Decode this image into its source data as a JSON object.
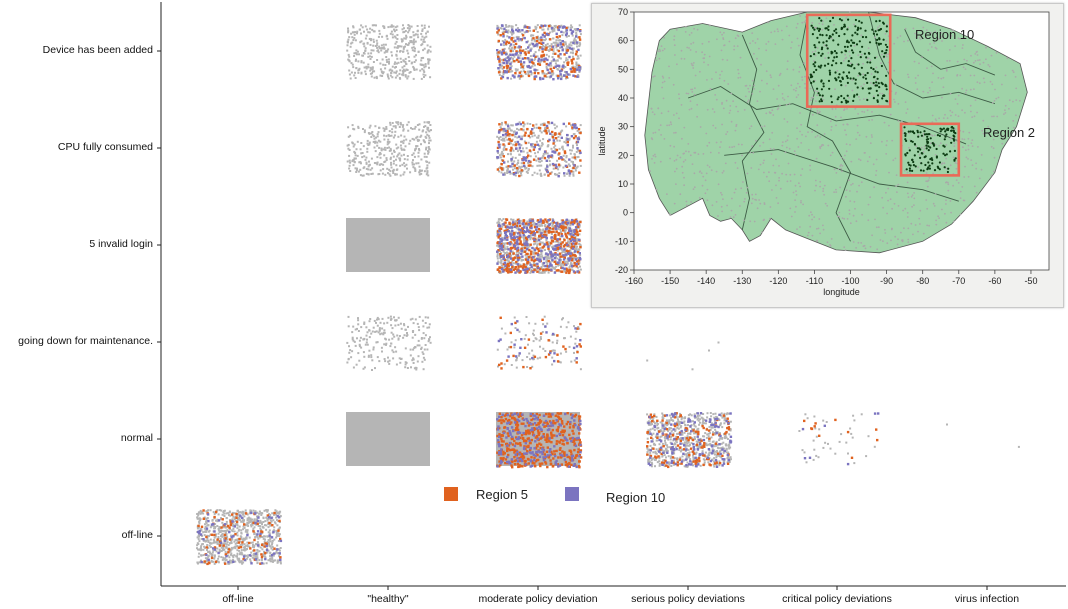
{
  "chart_data": [
    {
      "type": "scatter",
      "y_categories": [
        "Device has been added",
        "CPU fully consumed",
        "5 invalid login",
        "going down for maintenance.",
        "normal",
        "off-line"
      ],
      "x_categories": [
        "off-line",
        "\"healthy\"",
        "moderate policy deviation",
        "serious policy deviations",
        "critical policy deviations",
        "virus infection"
      ],
      "series": [
        {
          "name": "Region 5",
          "color": "#e0621f"
        },
        {
          "name": "Region 10",
          "color": "#7b74c0"
        }
      ],
      "background_color": "#b5b5b5",
      "cells": [
        {
          "x": "\"healthy\"",
          "y": "Device has been added",
          "density": 0.45,
          "region5": 0.0,
          "region10": 0.0
        },
        {
          "x": "moderate policy deviation",
          "y": "Device has been added",
          "density": 0.5,
          "region5": 0.3,
          "region10": 0.35
        },
        {
          "x": "\"healthy\"",
          "y": "CPU fully consumed",
          "density": 0.4,
          "region5": 0.0,
          "region10": 0.0
        },
        {
          "x": "moderate policy deviation",
          "y": "CPU fully consumed",
          "density": 0.4,
          "region5": 0.3,
          "region10": 0.25
        },
        {
          "x": "\"healthy\"",
          "y": "5 invalid login",
          "density": 0.95,
          "region5": 0.0,
          "region10": 0.0
        },
        {
          "x": "moderate policy deviation",
          "y": "5 invalid login",
          "density": 0.85,
          "region5": 0.45,
          "region10": 0.3
        },
        {
          "x": "\"healthy\"",
          "y": "going down for maintenance.",
          "density": 0.25,
          "region5": 0.0,
          "region10": 0.0
        },
        {
          "x": "moderate policy deviation",
          "y": "going down for maintenance.",
          "density": 0.1,
          "region5": 0.35,
          "region10": 0.25
        },
        {
          "x": "serious policy deviations",
          "y": "going down for maintenance.",
          "density": 0.004,
          "region5": 0.0,
          "region10": 0.0
        },
        {
          "x": "\"healthy\"",
          "y": "normal",
          "density": 1.0,
          "region5": 0.0,
          "region10": 0.0
        },
        {
          "x": "moderate policy deviation",
          "y": "normal",
          "density": 1.0,
          "region5": 0.5,
          "region10": 0.2
        },
        {
          "x": "serious policy deviations",
          "y": "normal",
          "density": 0.7,
          "region5": 0.2,
          "region10": 0.2
        },
        {
          "x": "critical policy deviations",
          "y": "normal",
          "density": 0.04,
          "region5": 0.3,
          "region10": 0.2
        },
        {
          "x": "virus infection",
          "y": "normal",
          "density": 0.002,
          "region5": 0.0,
          "region10": 0.0
        },
        {
          "x": "off-line",
          "y": "off-line",
          "density": 0.9,
          "region5": 0.1,
          "region10": 0.08
        }
      ]
    },
    {
      "type": "map",
      "xlabel": "longitude",
      "ylabel": "latitude",
      "xlim": [
        -160,
        -45
      ],
      "ylim": [
        -20,
        70
      ],
      "xticks": [
        -160,
        -150,
        -140,
        -130,
        -120,
        -110,
        -100,
        -90,
        -80,
        -70,
        -60,
        -50
      ],
      "yticks": [
        -20,
        -10,
        0,
        10,
        20,
        30,
        40,
        50,
        60,
        70
      ],
      "land_color": "#9fd3a8",
      "selection_color": "#ea6a57",
      "selections": [
        {
          "label": "Region 10",
          "lon": [
            -112,
            -89
          ],
          "lat": [
            37,
            69
          ]
        },
        {
          "label": "Region 2",
          "lon": [
            -86,
            -70
          ],
          "lat": [
            13,
            31
          ]
        }
      ]
    }
  ]
}
